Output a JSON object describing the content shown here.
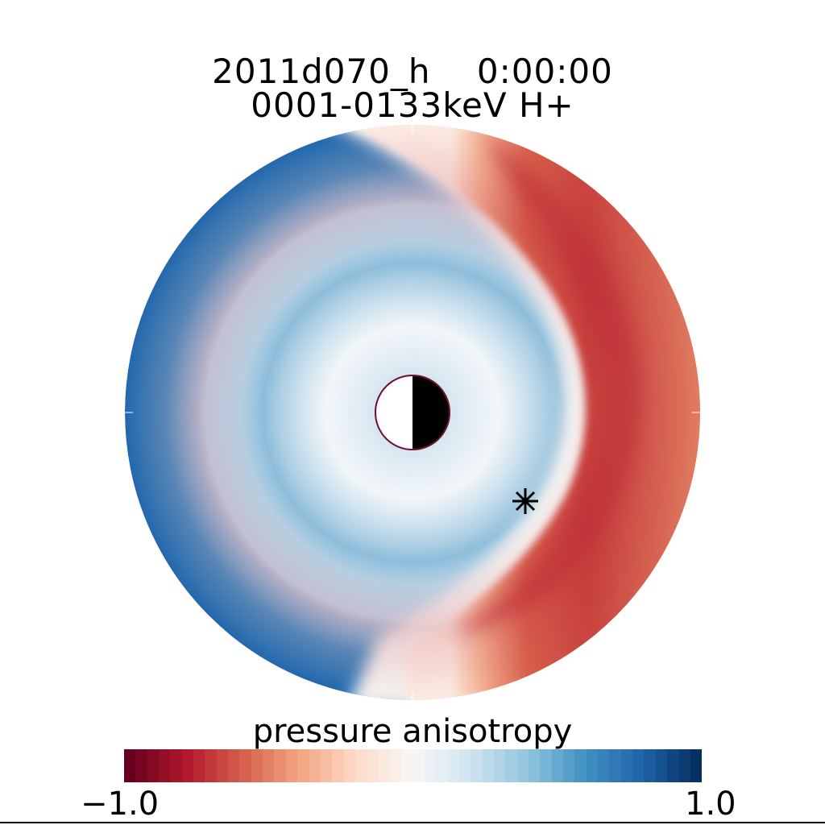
{
  "chart_data": {
    "type": "heatmap",
    "projection": "polar equatorial plane, noon at right, night side (dark) at right half of central planet",
    "title": "2011d070_h    0:00:00",
    "subtitle": "0001-0133keV H+",
    "colorbar": {
      "label": "pressure anisotropy",
      "min_label": "−1.0",
      "max_label": "1.0",
      "range": [
        -1.0,
        1.0
      ],
      "colormap": "diverging red-white-blue (red = -1.0, white = 0, blue = 1.0)",
      "colors": [
        "#67001f",
        "#b2182b",
        "#d6604d",
        "#f4a582",
        "#fddbc7",
        "#f7f7f7",
        "#d1e5f0",
        "#92c5de",
        "#4393c3",
        "#2166ac",
        "#053061"
      ]
    },
    "field_description": "Outer left/dawn side strongly positive (blue ~0.8), inner rings weakly positive (light blue ~0.2-0.4), outer right/dusk side negative (red ~ -0.7), white boundary spiraling from top center to bottom center.",
    "marker": {
      "symbol": "asterisk"
    },
    "planet": {
      "day_side_color": "#ffffff",
      "night_side_color": "#000000"
    }
  }
}
